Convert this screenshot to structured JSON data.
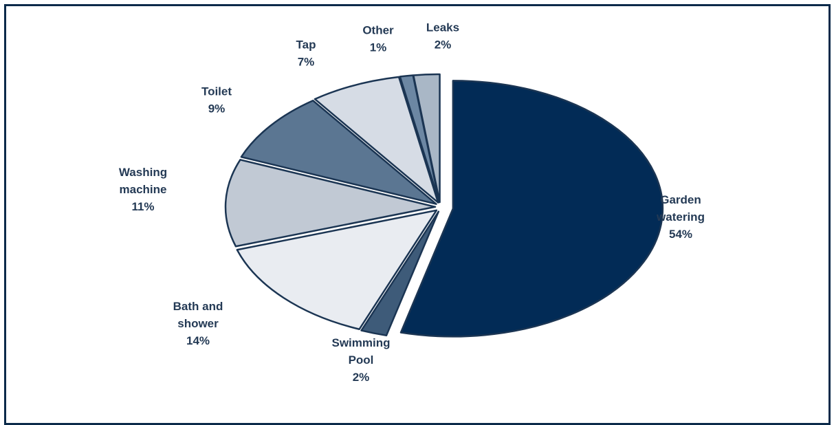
{
  "chart_data": {
    "type": "pie",
    "title": "",
    "slices": [
      {
        "name": "Garden watering",
        "label_lines": [
          "Garden",
          "watering"
        ],
        "value": 54,
        "pct_label": "54%",
        "color": "#022b56"
      },
      {
        "name": "Swimming Pool",
        "label_lines": [
          "Swimming",
          "Pool"
        ],
        "value": 2,
        "pct_label": "2%",
        "color": "#3e5b79"
      },
      {
        "name": "Bath and shower",
        "label_lines": [
          "Bath and",
          "shower"
        ],
        "value": 14,
        "pct_label": "14%",
        "color": "#e9ecf1"
      },
      {
        "name": "Washing machine",
        "label_lines": [
          "Washing",
          "machine"
        ],
        "value": 11,
        "pct_label": "11%",
        "color": "#c1c9d4"
      },
      {
        "name": "Toilet",
        "label_lines": [
          "Toilet"
        ],
        "value": 9,
        "pct_label": "9%",
        "color": "#5b7692"
      },
      {
        "name": "Tap",
        "label_lines": [
          "Tap"
        ],
        "value": 7,
        "pct_label": "7%",
        "color": "#d6dce5"
      },
      {
        "name": "Other",
        "label_lines": [
          "Other"
        ],
        "value": 1,
        "pct_label": "1%",
        "color": "#6c87a3"
      },
      {
        "name": "Leaks",
        "label_lines": [
          "Leaks"
        ],
        "value": 2,
        "pct_label": "2%",
        "color": "#a9b7c6"
      }
    ]
  }
}
